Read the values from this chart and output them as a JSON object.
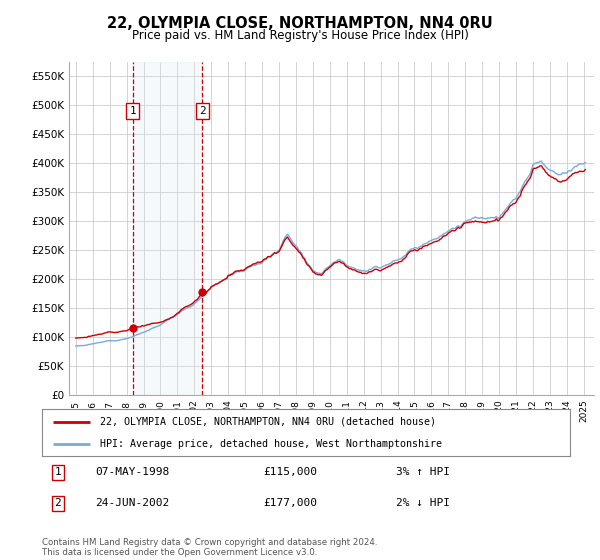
{
  "title": "22, OLYMPIA CLOSE, NORTHAMPTON, NN4 0RU",
  "subtitle": "Price paid vs. HM Land Registry's House Price Index (HPI)",
  "legend_line1": "22, OLYMPIA CLOSE, NORTHAMPTON, NN4 0RU (detached house)",
  "legend_line2": "HPI: Average price, detached house, West Northamptonshire",
  "sale1_date": "07-MAY-1998",
  "sale1_price": 115000,
  "sale1_label": "3% ↑ HPI",
  "sale2_date": "24-JUN-2002",
  "sale2_price": 177000,
  "sale2_label": "2% ↓ HPI",
  "footnote": "Contains HM Land Registry data © Crown copyright and database right 2024.\nThis data is licensed under the Open Government Licence v3.0.",
  "ylim": [
    0,
    575000
  ],
  "yticks": [
    0,
    50000,
    100000,
    150000,
    200000,
    250000,
    300000,
    350000,
    400000,
    450000,
    500000,
    550000
  ],
  "sale1_x": 1998.37,
  "sale2_x": 2002.48,
  "hpi_color": "#7aaadd",
  "price_color": "#cc0000",
  "grid_color": "#cccccc",
  "shade_color": "#d8e8f5",
  "marker_box_color": "#cc0000",
  "bg_color": "#ffffff",
  "footnote_color": "#555555"
}
